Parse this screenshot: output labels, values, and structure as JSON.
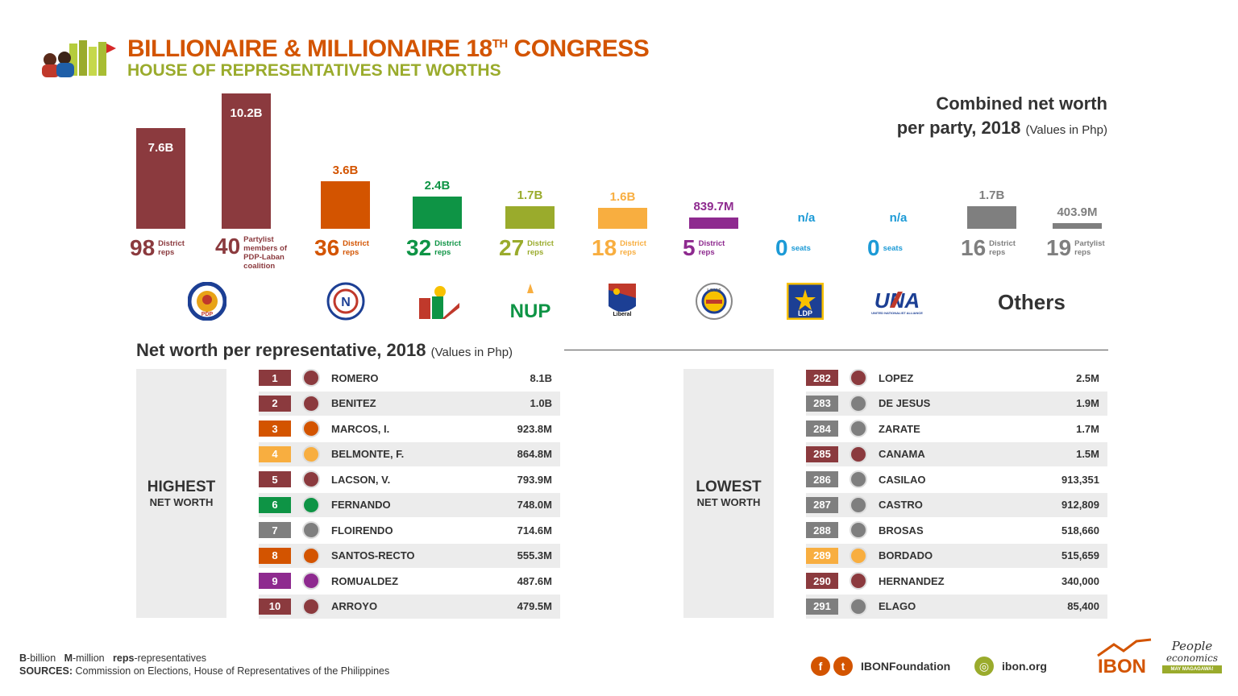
{
  "header": {
    "title_main": "BILLIONAIRE & MILLIONAIRE 18",
    "title_sup": "TH",
    "title_end": " CONGRESS",
    "subtitle": "HOUSE OF REPRESENTATIVES NET WORTHS"
  },
  "chart_title": {
    "line1": "Combined net worth",
    "line2": "per party, 2018",
    "note": "(Values in Php)"
  },
  "chart_data": {
    "type": "bar",
    "title": "Combined net worth per party, 2018 (Values in Php)",
    "unit": "Php",
    "categories": [
      "PDP-Laban District reps",
      "PDP-Laban coalition Partylist members",
      "NP District reps",
      "NPC District reps",
      "NUP District reps",
      "Liberal District reps",
      "Lakas-CMD District reps",
      "LDP",
      "UNA",
      "Others District reps",
      "Others Partylist reps"
    ],
    "value_labels": [
      "7.6B",
      "10.2B",
      "3.6B",
      "2.4B",
      "1.7B",
      "1.6B",
      "839.7M",
      "n/a",
      "n/a",
      "1.7B",
      "403.9M"
    ],
    "values_billions": [
      7.6,
      10.2,
      3.6,
      2.4,
      1.7,
      1.6,
      0.8397,
      null,
      null,
      1.7,
      0.4039
    ],
    "seats": [
      {
        "num": "98",
        "label": "District\nreps"
      },
      {
        "num": "40",
        "label": "Partylist\nmembers of\nPDP-Laban\ncoalition"
      },
      {
        "num": "36",
        "label": "District\nreps"
      },
      {
        "num": "32",
        "label": "District\nreps"
      },
      {
        "num": "27",
        "label": "District\nreps"
      },
      {
        "num": "18",
        "label": "District\nreps"
      },
      {
        "num": "5",
        "label": "District\nreps"
      },
      {
        "num": "0",
        "label": "seats"
      },
      {
        "num": "0",
        "label": "seats"
      },
      {
        "num": "16",
        "label": "District\nreps"
      },
      {
        "num": "19",
        "label": "Partylist\nreps"
      }
    ],
    "colors": [
      "#8b3a3e",
      "#8b3a3e",
      "#d35400",
      "#0e9445",
      "#9aab2c",
      "#f8ae40",
      "#8e2a8f",
      "#1c9ad6",
      "#1c9ad6",
      "#7f7f7f",
      "#7f7f7f"
    ]
  },
  "logos": {
    "pdp": "PDP",
    "np": "N",
    "npc": "NPC",
    "nup": "NUP",
    "liberal": "Liberal",
    "lakas": "LAKAS",
    "ldp": "LDP",
    "una": "UNA",
    "una_sub": "UNITED NATIONALIST ALLIANCE",
    "others": "Others"
  },
  "section": {
    "title": "Net worth per representative, 2018",
    "note": "(Values in Php)"
  },
  "highest": {
    "label_big": "HIGHEST",
    "label_sub": "NET WORTH",
    "rows": [
      {
        "rank": "1",
        "name": "ROMERO",
        "value": "8.1B",
        "color": "#8b3a3e"
      },
      {
        "rank": "2",
        "name": "BENITEZ",
        "value": "1.0B",
        "color": "#8b3a3e"
      },
      {
        "rank": "3",
        "name": "MARCOS, I.",
        "value": "923.8M",
        "color": "#d35400"
      },
      {
        "rank": "4",
        "name": "BELMONTE, F.",
        "value": "864.8M",
        "color": "#f8ae40"
      },
      {
        "rank": "5",
        "name": "LACSON, V.",
        "value": "793.9M",
        "color": "#8b3a3e"
      },
      {
        "rank": "6",
        "name": "FERNANDO",
        "value": "748.0M",
        "color": "#0e9445"
      },
      {
        "rank": "7",
        "name": "FLOIRENDO",
        "value": "714.6M",
        "color": "#7f7f7f"
      },
      {
        "rank": "8",
        "name": "SANTOS-RECTO",
        "value": "555.3M",
        "color": "#d35400"
      },
      {
        "rank": "9",
        "name": "ROMUALDEZ",
        "value": "487.6M",
        "color": "#8e2a8f"
      },
      {
        "rank": "10",
        "name": "ARROYO",
        "value": "479.5M",
        "color": "#8b3a3e"
      }
    ]
  },
  "lowest": {
    "label_big": "LOWEST",
    "label_sub": "NET WORTH",
    "rows": [
      {
        "rank": "282",
        "name": "LOPEZ",
        "value": "2.5M",
        "color": "#8b3a3e"
      },
      {
        "rank": "283",
        "name": "DE JESUS",
        "value": "1.9M",
        "color": "#7f7f7f"
      },
      {
        "rank": "284",
        "name": "ZARATE",
        "value": "1.7M",
        "color": "#7f7f7f"
      },
      {
        "rank": "285",
        "name": "CANAMA",
        "value": "1.5M",
        "color": "#8b3a3e"
      },
      {
        "rank": "286",
        "name": "CASILAO",
        "value": "913,351",
        "color": "#7f7f7f"
      },
      {
        "rank": "287",
        "name": "CASTRO",
        "value": "912,809",
        "color": "#7f7f7f"
      },
      {
        "rank": "288",
        "name": "BROSAS",
        "value": "518,660",
        "color": "#7f7f7f"
      },
      {
        "rank": "289",
        "name": "BORDADO",
        "value": "515,659",
        "color": "#f8ae40"
      },
      {
        "rank": "290",
        "name": "HERNANDEZ",
        "value": "340,000",
        "color": "#8b3a3e"
      },
      {
        "rank": "291",
        "name": "ELAGO",
        "value": "85,400",
        "color": "#7f7f7f"
      }
    ]
  },
  "footer": {
    "legend_b": "B",
    "legend_b_text": "-billion",
    "legend_m": "M",
    "legend_m_text": "-million",
    "legend_reps": "reps",
    "legend_reps_text": "-representatives",
    "sources_label": "SOURCES:",
    "sources_text": "Commission on Elections, House of Representatives of the Philippines",
    "social_handle": "IBONFoundation",
    "website": "ibon.org",
    "brand": "IBON",
    "brand2_line1": "People",
    "brand2_line2": "economics",
    "brand2_tag": "MAY MAGAGAWA!"
  }
}
